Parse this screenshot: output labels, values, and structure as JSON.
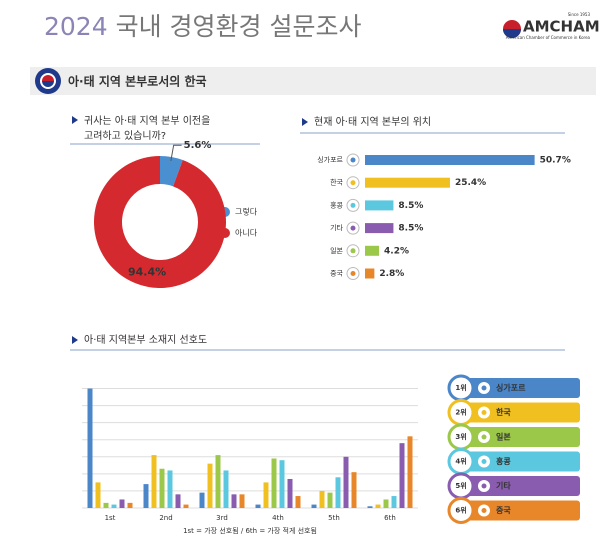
{
  "header": {
    "title_year": "2024",
    "title_rest": "국내 경영환경 설문조사",
    "logo": "AMCHAM",
    "logo_since": "Since 1953",
    "logo_sub": "American Chamber of Commerce in Korea"
  },
  "section": {
    "title": "아·태 지역 본부로서의 한국"
  },
  "chart_data": [
    {
      "type": "donut",
      "title": [
        "귀사는 아·태 지역 본부 이전을",
        "고려하고 있습니까?"
      ],
      "categories": [
        "그렇다",
        "아니다"
      ],
      "values": [
        5.6,
        94.4
      ],
      "value_labels": [
        "5.6%",
        "94.4%"
      ],
      "colors": [
        "#4a8fd0",
        "#d42a2f"
      ]
    },
    {
      "type": "hbar",
      "title": "현재 아·태 지역 본부의 위치",
      "categories": [
        "싱가포르",
        "한국",
        "홍콩",
        "기타",
        "일본",
        "중국"
      ],
      "values": [
        50.7,
        25.4,
        8.5,
        8.5,
        4.2,
        2.8
      ],
      "value_labels": [
        "50.7%",
        "25.4%",
        "8.5%",
        "8.5%",
        "4.2%",
        "2.8%"
      ],
      "colors": [
        "#4a86c8",
        "#f0c020",
        "#5bc8e0",
        "#8a5cb0",
        "#9cc84a",
        "#e8872a"
      ],
      "xlim": [
        0,
        55
      ]
    },
    {
      "type": "grouped_bar",
      "title": "아·태 지역본부 소재지 선호도",
      "categories": [
        "1st",
        "2nd",
        "3rd",
        "4th",
        "5th",
        "6th"
      ],
      "series": [
        {
          "name": "싱가포르",
          "color": "#4a86c8",
          "values": [
            70,
            14,
            9,
            2,
            2,
            1
          ]
        },
        {
          "name": "한국",
          "color": "#f0c020",
          "values": [
            15,
            31,
            26,
            15,
            10,
            2
          ]
        },
        {
          "name": "일본",
          "color": "#9cc84a",
          "values": [
            3,
            23,
            31,
            29,
            9,
            5
          ]
        },
        {
          "name": "홍콩",
          "color": "#5bc8e0",
          "values": [
            2,
            22,
            22,
            28,
            18,
            7
          ]
        },
        {
          "name": "기타",
          "color": "#8a5cb0",
          "values": [
            5,
            8,
            8,
            17,
            30,
            38
          ]
        },
        {
          "name": "중국",
          "color": "#e8872a",
          "values": [
            3,
            2,
            8,
            7,
            21,
            42
          ]
        }
      ],
      "ylim": [
        0,
        75
      ],
      "yticks": [
        0,
        10,
        20,
        30,
        40,
        50,
        60,
        70
      ],
      "grid": true,
      "legend_ranks": [
        "1위",
        "2위",
        "3위",
        "4위",
        "5위",
        "6위"
      ],
      "note": "1st = 가장 선호됨 / 6th = 가장 적게 선호됨"
    }
  ]
}
